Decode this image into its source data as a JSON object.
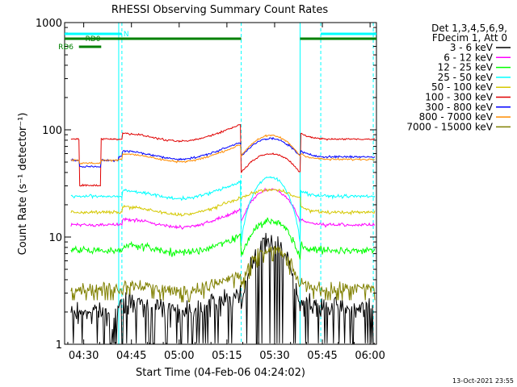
{
  "chart_data": {
    "type": "line",
    "title": "RHESSI Observing Summary Count Rates",
    "xlabel": "Start Time (04-Feb-06 04:24:02)",
    "ylabel": "Count Rate (s⁻¹ detector⁻¹)",
    "yscale": "log",
    "ylim": [
      1,
      1000
    ],
    "xlim_minutes": [
      0,
      98
    ],
    "x_ticks": [
      {
        "minute": 6,
        "label": "04:30"
      },
      {
        "minute": 21,
        "label": "04:45"
      },
      {
        "minute": 36,
        "label": "05:00"
      },
      {
        "minute": 51,
        "label": "05:15"
      },
      {
        "minute": 66,
        "label": "05:30"
      },
      {
        "minute": 81,
        "label": "05:45"
      },
      {
        "minute": 96,
        "label": "06:00"
      }
    ],
    "y_ticks": [
      {
        "value": 1,
        "label": "1"
      },
      {
        "value": 10,
        "label": "10"
      },
      {
        "value": 100,
        "label": "100"
      },
      {
        "value": 1000,
        "label": "1000"
      }
    ],
    "legend_header": [
      "Det 1,3,4,5,6,9,",
      "FDecim 1, Att 0"
    ],
    "series": [
      {
        "name": "3 - 6 keV",
        "color": "#000000"
      },
      {
        "name": "6 - 12 keV",
        "color": "#ff00ff"
      },
      {
        "name": "12 - 25 keV",
        "color": "#00ff00"
      },
      {
        "name": "25 - 50 keV",
        "color": "#00ffff"
      },
      {
        "name": "50 - 100 keV",
        "color": "#d4c800"
      },
      {
        "name": "100 - 300 keV",
        "color": "#e00000"
      },
      {
        "name": "300 - 800 keV",
        "color": "#0000ff"
      },
      {
        "name": "800 - 7000 keV",
        "color": "#ff8c00"
      },
      {
        "name": "7000 - 15000 keV",
        "color": "#808000"
      }
    ],
    "flags": [
      {
        "label": "N",
        "color": "#00ffff",
        "segments": [
          [
            0,
            18
          ],
          [
            80.5,
            98
          ]
        ]
      },
      {
        "label": "RD0",
        "color": "#008000",
        "segments": [
          [
            0,
            55.5
          ],
          [
            74,
            98
          ]
        ]
      },
      {
        "label": "RD6",
        "color": "#008000",
        "segments": [
          [
            4.5,
            11.5
          ]
        ]
      }
    ],
    "event_lines_minutes": [
      17,
      18,
      55.5,
      74,
      80.5,
      97
    ]
  },
  "timestamp": "13-Oct-2021 23:55"
}
